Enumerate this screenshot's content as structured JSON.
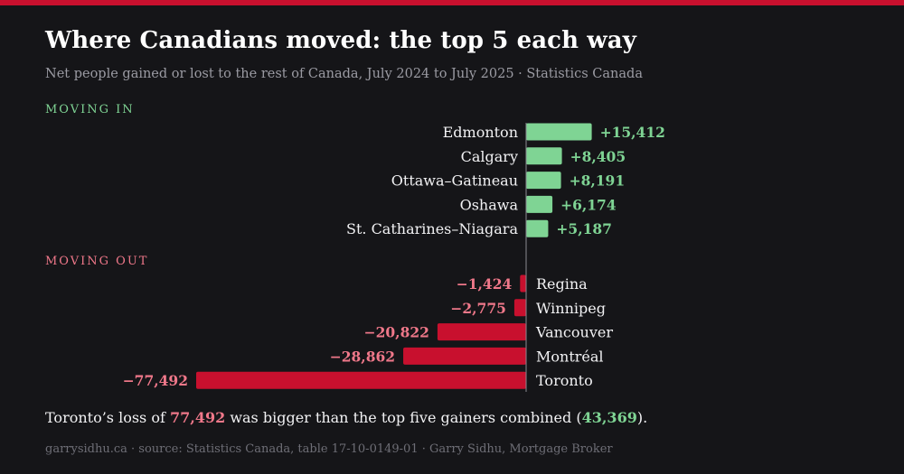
{
  "header": {
    "title": "Where Canadians moved: the top 5 each way",
    "subtitle": "Net people gained or lost to the rest of Canada, July 2024 to July 2025 · Statistics Canada"
  },
  "colors": {
    "accent": "#c8102e",
    "gain_bar": "#7fd494",
    "gain_text": "#7fd494",
    "loss_bar": "#c8102e",
    "loss_text": "#f0788a"
  },
  "chart_data": {
    "type": "bar",
    "orientation": "horizontal",
    "groups": [
      {
        "label": "MOVING IN",
        "categories": [
          "Edmonton",
          "Calgary",
          "Ottawa–Gatineau",
          "Oshawa",
          "St. Catharines–Niagara"
        ],
        "values": [
          15412,
          8405,
          8191,
          6174,
          5187
        ],
        "value_labels": [
          "+15,412",
          "+8,405",
          "+8,191",
          "+6,174",
          "+5,187"
        ]
      },
      {
        "label": "MOVING OUT",
        "categories": [
          "Regina",
          "Winnipeg",
          "Vancouver",
          "Montréal",
          "Toronto"
        ],
        "values": [
          -1424,
          -2775,
          -20822,
          -28862,
          -77492
        ],
        "value_labels": [
          "−1,424",
          "−2,775",
          "−20,822",
          "−28,862",
          "−77,492"
        ]
      }
    ],
    "title": "Where Canadians moved: the top 5 each way",
    "xlabel": "",
    "ylabel": "",
    "grid": false,
    "legend": "none"
  },
  "summary": {
    "text_before": "Toronto’s loss of ",
    "loss_value": "77,492",
    "text_middle": " was bigger than the top five gainers combined (",
    "gain_value": "43,369",
    "text_after": ")."
  },
  "footer": {
    "text": "garrysidhu.ca · source: Statistics Canada, table 17-10-0149-01 · Garry Sidhu, Mortgage Broker"
  }
}
